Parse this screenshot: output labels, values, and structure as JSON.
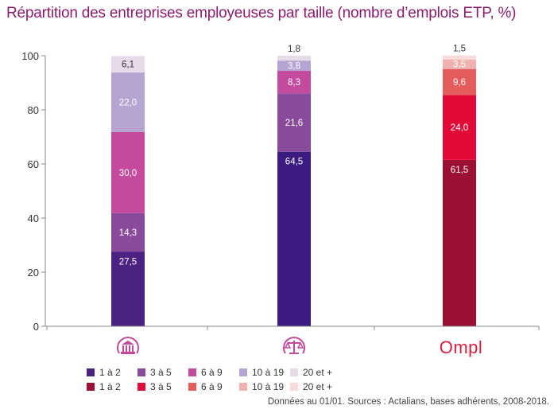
{
  "title": "Répartition des entreprises employeuses par taille (nombre d’emplois ETP, %)",
  "source": "Données au 01/01. Sources : Actalians, bases adhérents, 2008-2018.",
  "chart_data": {
    "type": "bar",
    "stacked": true,
    "ylim": [
      0,
      100
    ],
    "yticks": [
      "0",
      "20",
      "40",
      "60",
      "80",
      "100"
    ],
    "grid": false,
    "categories": [
      {
        "icon": "bank-icon"
      },
      {
        "icon": "scales-icon"
      },
      {
        "logo": "Ompl"
      }
    ],
    "stacks": [
      {
        "segments": [
          {
            "size": "1 à 2",
            "value": 27.5,
            "label": "27,5",
            "color": "#4b2282"
          },
          {
            "size": "3 à 5",
            "value": 14.3,
            "label": "14,3",
            "color": "#8a4a9c"
          },
          {
            "size": "6 à 9",
            "value": 30.0,
            "label": "30,0",
            "color": "#c44a9e"
          },
          {
            "size": "10 à 19",
            "value": 22.0,
            "label": "22,0",
            "color": "#b6a5d3"
          },
          {
            "size": "20 et +",
            "value": 6.1,
            "label": "6,1",
            "color": "#e8dbe9"
          }
        ]
      },
      {
        "segments": [
          {
            "size": "1 à 2",
            "value": 64.5,
            "label": "64,5",
            "color": "#3b1a82"
          },
          {
            "size": "3 à 5",
            "value": 21.6,
            "label": "21,6",
            "color": "#8a4a9c"
          },
          {
            "size": "6 à 9",
            "value": 8.3,
            "label": "8,3",
            "color": "#c44a9e"
          },
          {
            "size": "10 à 19",
            "value": 3.8,
            "label": "3,8",
            "color": "#b6a5d3"
          },
          {
            "size": "20 et +",
            "value": 1.8,
            "label": "1,8",
            "color": "#e8dbe9"
          }
        ]
      },
      {
        "segments": [
          {
            "size": "1 à 2",
            "value": 61.5,
            "label": "61,5",
            "color": "#9c1033"
          },
          {
            "size": "3 à 5",
            "value": 24.0,
            "label": "24,0",
            "color": "#e20a37"
          },
          {
            "size": "6 à 9",
            "value": 9.6,
            "label": "9,6",
            "color": "#e45c5c"
          },
          {
            "size": "10 à 19",
            "value": 3.5,
            "label": "3,5",
            "color": "#f0b2ae"
          },
          {
            "size": "20 et +",
            "value": 1.5,
            "label": "1,5",
            "color": "#f8dcd9"
          }
        ]
      }
    ],
    "legend": [
      {
        "items": [
          {
            "label": "1 à 2",
            "color": "#4b2282"
          },
          {
            "label": "3 à 5",
            "color": "#8a4a9c"
          },
          {
            "label": "6 à 9",
            "color": "#c44a9e"
          },
          {
            "label": "10 à 19",
            "color": "#b6a5d3"
          },
          {
            "label": "20 et +",
            "color": "#e8dbe9"
          }
        ]
      },
      {
        "items": [
          {
            "label": "1 à 2",
            "color": "#9c1033"
          },
          {
            "label": "3 à 5",
            "color": "#e20a37"
          },
          {
            "label": "6 à 9",
            "color": "#e45c5c"
          },
          {
            "label": "10 à 19",
            "color": "#f0b2ae"
          },
          {
            "label": "20 et +",
            "color": "#f8dcd9"
          }
        ]
      }
    ],
    "colors": {
      "title": "#8a1c6e",
      "icon": "#c44a9e",
      "logo": "#d5213f"
    }
  }
}
